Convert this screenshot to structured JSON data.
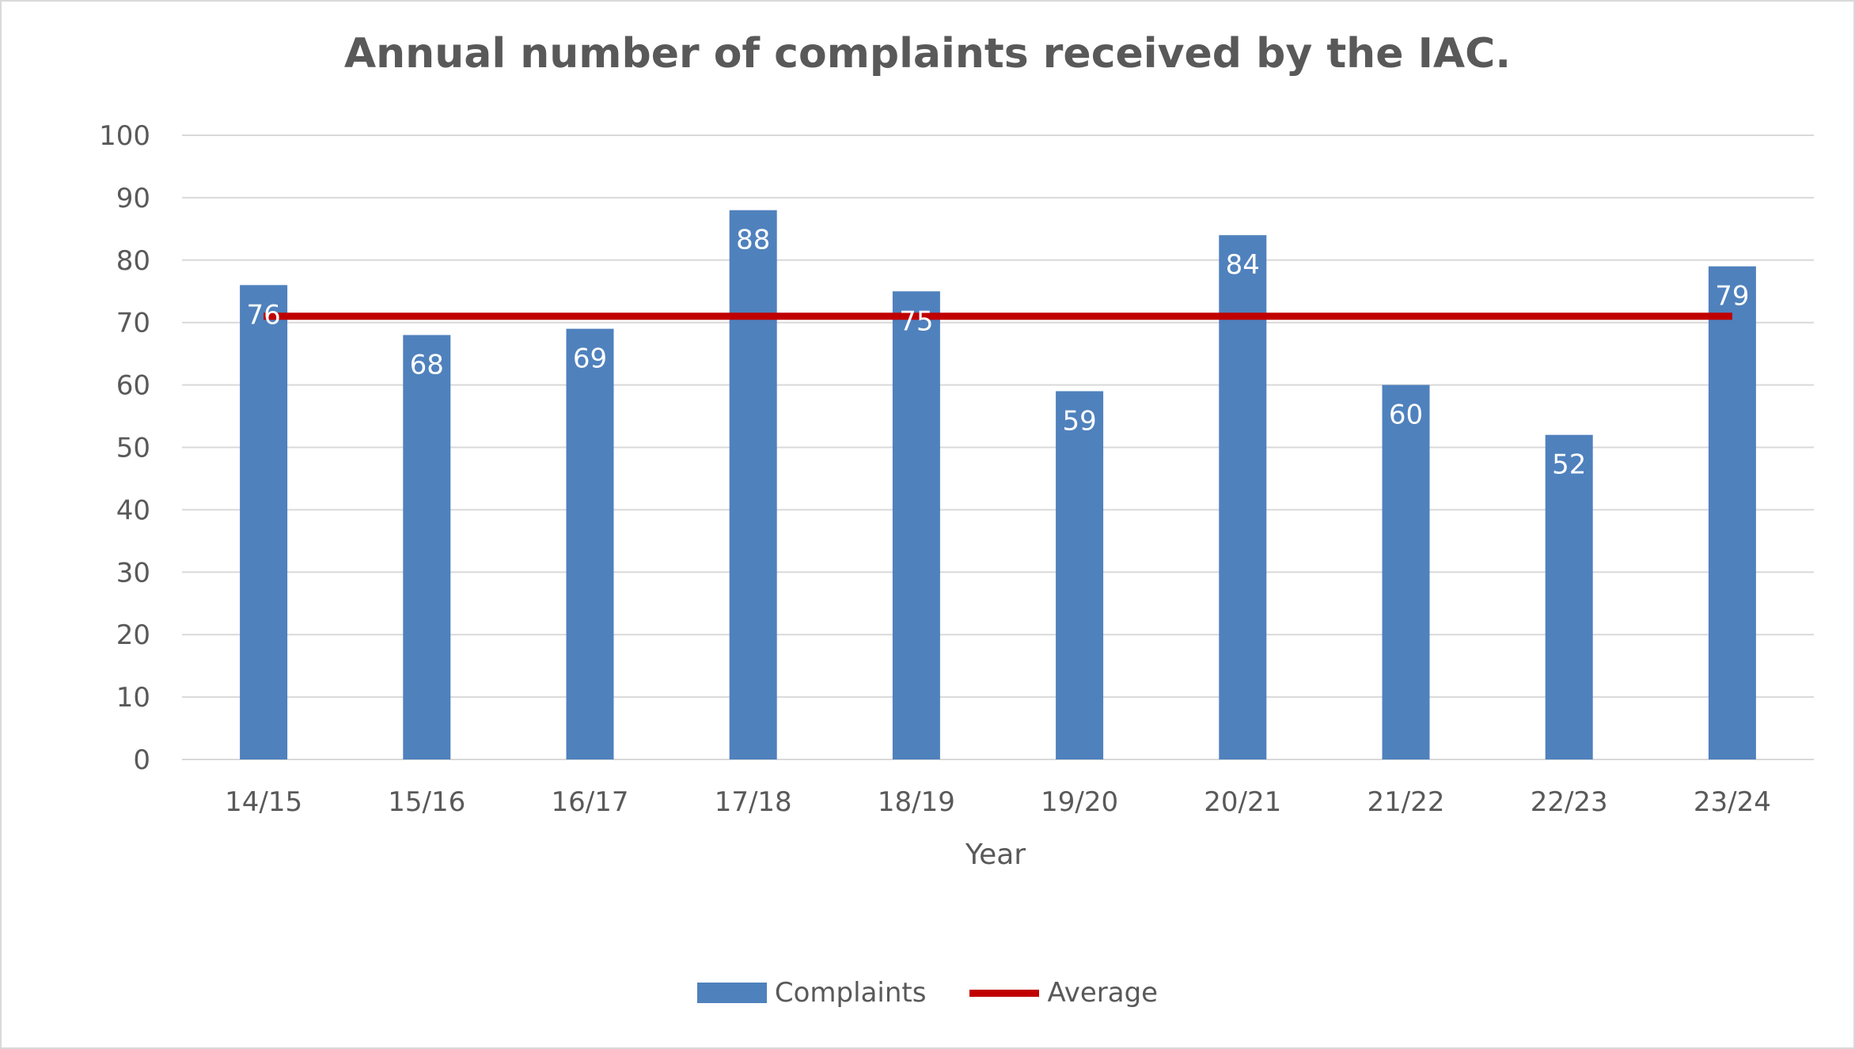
{
  "chart": {
    "title": "Annual number of complaints received by the IAC.",
    "xlabel": "Year",
    "legend": {
      "complaints": "Complaints",
      "average": "Average"
    }
  },
  "colors": {
    "bar": "#4f81bd",
    "average": "#c00000",
    "grid": "#d9d9d9",
    "text": "#595959"
  },
  "chart_data": {
    "type": "bar",
    "title": "Annual number of complaints received by the IAC.",
    "xlabel": "Year",
    "ylabel": "",
    "categories": [
      "14/15",
      "15/16",
      "16/17",
      "17/18",
      "18/19",
      "19/20",
      "20/21",
      "21/22",
      "22/23",
      "23/24"
    ],
    "series": [
      {
        "name": "Complaints",
        "type": "bar",
        "values": [
          76,
          68,
          69,
          88,
          75,
          59,
          84,
          60,
          52,
          79
        ]
      },
      {
        "name": "Average",
        "type": "line",
        "values": [
          71,
          71,
          71,
          71,
          71,
          71,
          71,
          71,
          71,
          71
        ]
      }
    ],
    "ylim": [
      0,
      100
    ],
    "yticks": [
      0,
      10,
      20,
      30,
      40,
      50,
      60,
      70,
      80,
      90,
      100
    ],
    "data_labels": true,
    "grid": true,
    "legend_position": "bottom"
  }
}
